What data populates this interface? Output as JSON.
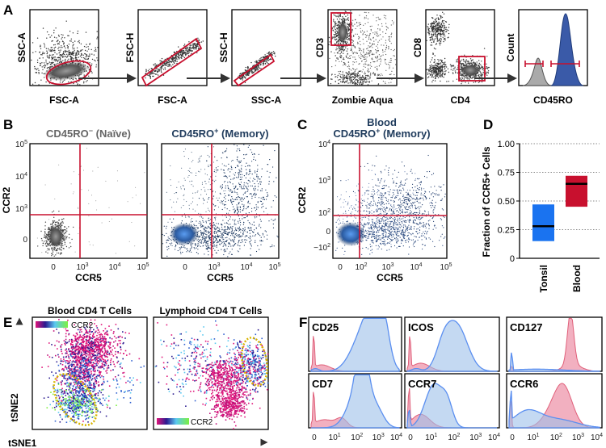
{
  "panels": {
    "a": "A",
    "b": "B",
    "c": "C",
    "d": "D",
    "e": "E",
    "f": "F"
  },
  "panel_a": {
    "plots": [
      {
        "x": "FSC-A",
        "y": "SSC-A"
      },
      {
        "x": "FSC-A",
        "y": "FSC-H"
      },
      {
        "x": "SSC-A",
        "y": "SSC-H"
      },
      {
        "x": "Zombie Aqua",
        "y": "CD3"
      },
      {
        "x": "CD4",
        "y": "CD8"
      },
      {
        "x": "CD45RO",
        "y": "Count"
      }
    ]
  },
  "panel_b": {
    "title_naive": "CD45RO",
    "title_naive_sup": "−",
    "title_naive_rest": " (Naïve)",
    "title_mem": "CD45RO",
    "title_mem_sup": "+",
    "title_mem_rest": " (Memory)",
    "ylabel": "CCR2",
    "xlabel": "CCR5",
    "yticks": [
      {
        "b": "10",
        "e": "5"
      },
      {
        "b": "10",
        "e": "4"
      },
      {
        "b": "10",
        "e": "3"
      },
      {
        "b": "0",
        "e": ""
      }
    ],
    "xticks": [
      {
        "b": "0",
        "e": ""
      },
      {
        "b": "10",
        "e": "3"
      },
      {
        "b": "10",
        "e": "4"
      },
      {
        "b": "10",
        "e": "5"
      }
    ]
  },
  "panel_c": {
    "title1": "Blood",
    "title2": "CD45RO",
    "title2_sup": "+",
    "title2_rest": " (Memory)",
    "ylabel": "CCR2",
    "xlabel": "CCR5",
    "yticks": [
      {
        "b": "10",
        "e": "4"
      },
      {
        "b": "10",
        "e": "3"
      },
      {
        "b": "10",
        "e": "2"
      },
      {
        "b": "0",
        "e": ""
      },
      {
        "b": "−10",
        "e": "2"
      }
    ],
    "xticks": [
      {
        "b": "0",
        "e": ""
      },
      {
        "b": "10",
        "e": "2"
      },
      {
        "b": "10",
        "e": "3"
      },
      {
        "b": "10",
        "e": "4"
      },
      {
        "b": "10",
        "e": "5"
      }
    ]
  },
  "chart_data": [
    {
      "type": "bar",
      "subtype": "floating-box",
      "panel": "D",
      "ylabel": "Fraction of CCR5+ Cells",
      "ylim": [
        0,
        1
      ],
      "yticks": [
        "0",
        "0.25",
        "0.50",
        "0.75",
        "1.00"
      ],
      "grid": "horizontal-dotted",
      "categories": [
        "Tonsil",
        "Blood"
      ],
      "low": [
        0.15,
        0.45
      ],
      "high": [
        0.47,
        0.72
      ],
      "median": [
        0.28,
        0.65
      ],
      "colors": [
        "#1a73f0",
        "#c8102e"
      ]
    },
    {
      "type": "area",
      "panel": "F",
      "xticks": [
        {
          "b": "0",
          "e": ""
        },
        {
          "b": "10",
          "e": "1"
        },
        {
          "b": "10",
          "e": "2"
        },
        {
          "b": "10",
          "e": "3"
        },
        {
          "b": "10",
          "e": "4"
        }
      ],
      "markers": [
        "CD25",
        "ICOS",
        "CD127",
        "CD7",
        "CCR7",
        "CCR6"
      ],
      "series_colors": {
        "blue": "#5b8ff0",
        "red": "#e0607a"
      }
    }
  ],
  "panel_e": {
    "title_blood": "Blood CD4 T Cells",
    "title_lymph": "Lymphoid CD4 T Cells",
    "legend": "CCR2",
    "xlabel": "tSNE1",
    "ylabel": "tSNE2"
  },
  "colors": {
    "gate": "#c8102e",
    "memory_title": "#1f3b5c",
    "naive_title": "#666666"
  }
}
